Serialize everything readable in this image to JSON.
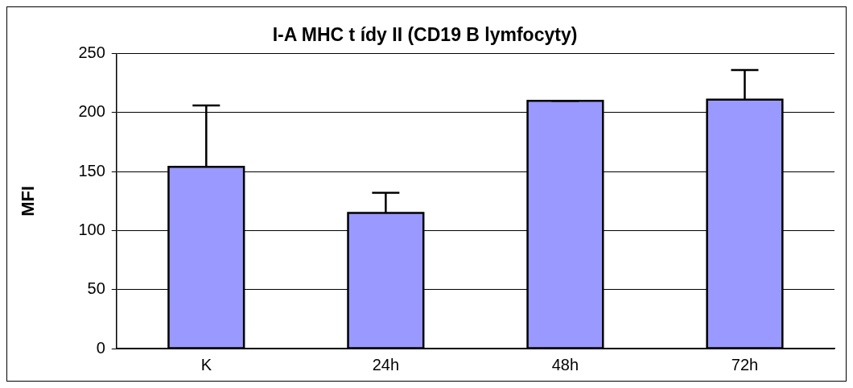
{
  "chart_data": {
    "type": "bar",
    "title": "I-A MHC t ídy II (CD19 B lymfocyty)",
    "ylabel": "MFI",
    "categories": [
      "K",
      "24h",
      "48h",
      "72h"
    ],
    "values": [
      154,
      115,
      210,
      211
    ],
    "errors": [
      [
        154,
        206
      ],
      [
        115,
        132
      ],
      [
        210,
        210
      ],
      [
        211,
        236
      ]
    ],
    "color": "#9999ff",
    "ylim": [
      0,
      250
    ],
    "yticks": [
      0,
      50,
      100,
      150,
      200,
      250
    ],
    "grid": "y",
    "legend": false
  }
}
